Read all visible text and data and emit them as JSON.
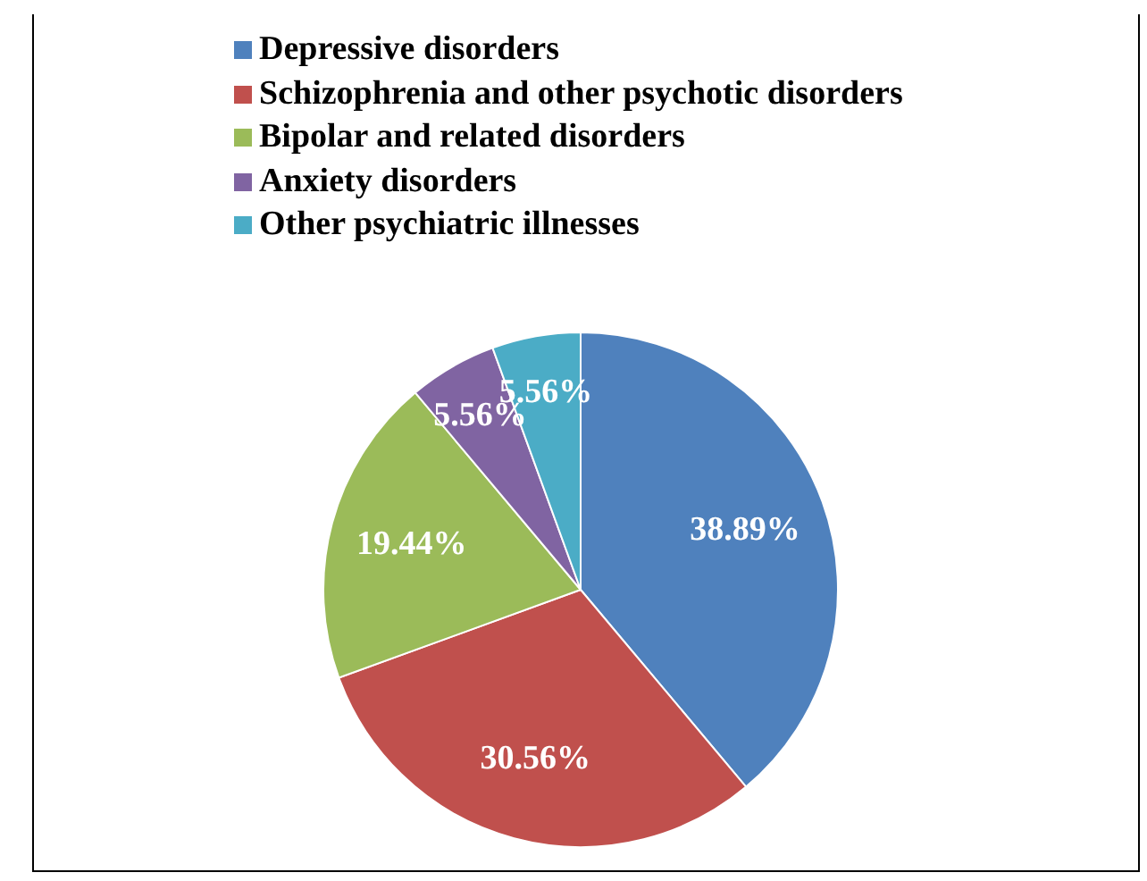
{
  "chart_data": {
    "type": "pie",
    "categories": [
      "Depressive disorders",
      "Schizophrenia and other psychotic disorders",
      "Bipolar and related disorders",
      "Anxiety disorders",
      "Other psychiatric illnesses"
    ],
    "values": [
      38.89,
      30.56,
      19.44,
      5.56,
      5.56
    ],
    "colors": [
      "#4f81bd",
      "#c0504d",
      "#9bbb59",
      "#8064a2",
      "#4bacc6"
    ],
    "value_labels": [
      "38.89%",
      "30.56%",
      "19.44%",
      "5.56%",
      "5.56%"
    ],
    "legend": "top"
  }
}
